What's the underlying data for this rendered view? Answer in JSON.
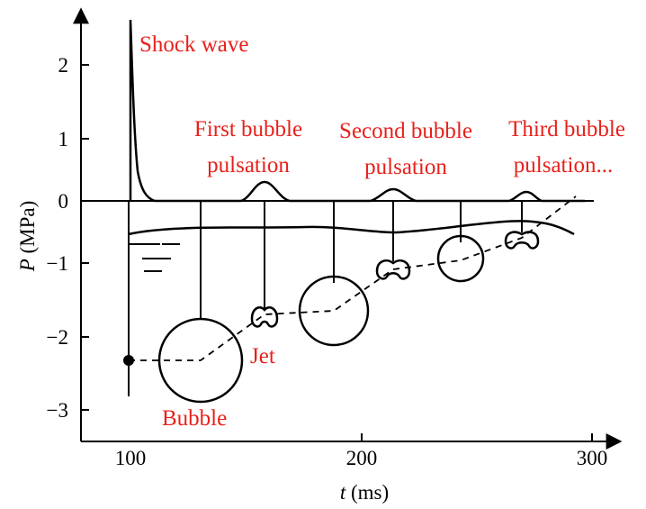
{
  "colors": {
    "annotation": "#e8211b",
    "ink": "#000000",
    "background": "#ffffff"
  },
  "axes": {
    "x": {
      "label_var": "t",
      "label_unit": " (ms)",
      "ticks": [
        "100",
        "200",
        "300"
      ]
    },
    "y": {
      "label_var": "P",
      "label_unit": " (MPa)",
      "ticks": [
        "2",
        "1",
        "0",
        "−1",
        "−2",
        "−3"
      ]
    }
  },
  "annotations": {
    "shock_wave": "Shock wave",
    "first_pulsation_line1": "First bubble",
    "first_pulsation_line2": "pulsation",
    "second_pulsation_line1": "Second bubble",
    "second_pulsation_line2": "pulsation",
    "third_pulsation_line1": "Third bubble",
    "third_pulsation_line2": "pulsation...",
    "jet": "Jet",
    "bubble": "Bubble"
  }
}
